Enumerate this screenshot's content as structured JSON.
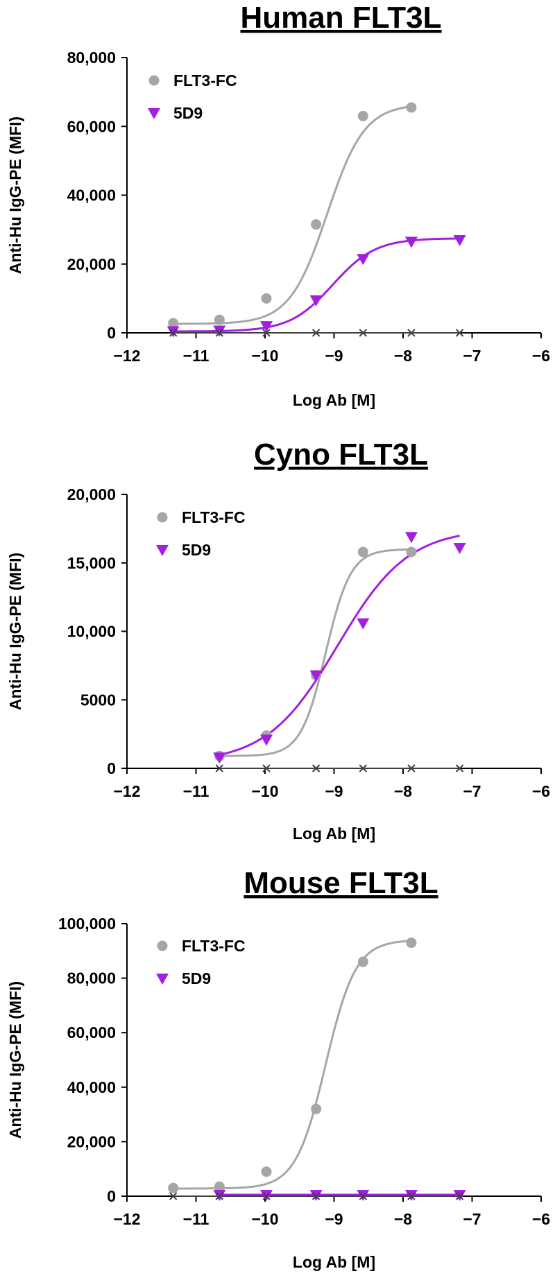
{
  "colors": {
    "flt3fc": "#a6a6a6",
    "d5d9": "#a21ee0",
    "control": "#404040",
    "axis": "#000000"
  },
  "chart_data": [
    {
      "type": "scatter",
      "title": "Human FLT3L",
      "xlabel": "Log Ab [M]",
      "ylabel": "Anti-Hu IgG-PE (MFI)",
      "xlim": [
        -12,
        -6
      ],
      "ylim": [
        0,
        80000
      ],
      "xticks": [
        -12,
        -11,
        -10,
        -9,
        -8,
        -7,
        -6
      ],
      "xtick_labels": [
        "−12",
        "−11",
        "−10",
        "−9",
        "−8",
        "−7",
        "−6"
      ],
      "yticks": [
        0,
        20000,
        40000,
        60000,
        80000
      ],
      "ytick_labels": [
        "0",
        "20,000",
        "40,000",
        "60,000",
        "80,000"
      ],
      "legend": [
        "FLT3-FC",
        "5D9"
      ],
      "legend_position": "top-left",
      "series": [
        {
          "name": "FLT3-FC",
          "marker": "circle",
          "x": [
            -11.33,
            -10.66,
            -9.98,
            -9.26,
            -8.58,
            -7.88
          ],
          "y": [
            2800,
            3800,
            10000,
            31500,
            63000,
            65500
          ],
          "fit": {
            "bottom": 2600,
            "top": 66500,
            "logec50": -9.1,
            "hill": 1.6,
            "xmin": -11.33,
            "xmax": -7.88
          }
        },
        {
          "name": "5D9",
          "marker": "triangle-down",
          "x": [
            -11.33,
            -10.66,
            -9.98,
            -9.26,
            -8.58,
            -7.88,
            -7.18
          ],
          "y": [
            500,
            700,
            2000,
            9500,
            21500,
            26500,
            27000
          ],
          "fit": {
            "bottom": 400,
            "top": 27500,
            "logec50": -9.02,
            "hill": 1.4,
            "xmin": -11.33,
            "xmax": -7.18
          }
        },
        {
          "name": "control",
          "marker": "x",
          "x": [
            -11.33,
            -10.66,
            -9.98,
            -9.26,
            -8.58,
            -7.88,
            -7.18
          ],
          "y": [
            0,
            0,
            0,
            0,
            0,
            0,
            0
          ]
        }
      ]
    },
    {
      "type": "scatter",
      "title": "Cyno FLT3L",
      "xlabel": "Log Ab [M]",
      "ylabel": "Anti-Hu IgG-PE (MFI)",
      "xlim": [
        -12,
        -6
      ],
      "ylim": [
        0,
        20000
      ],
      "xticks": [
        -12,
        -11,
        -10,
        -9,
        -8,
        -7,
        -6
      ],
      "xtick_labels": [
        "−12",
        "−11",
        "−10",
        "−9",
        "−8",
        "−7",
        "−6"
      ],
      "yticks": [
        0,
        5000,
        10000,
        15000,
        20000
      ],
      "ytick_labels": [
        "0",
        "5000",
        "10,000",
        "15,000",
        "20,000"
      ],
      "legend": [
        "FLT3-FC",
        "5D9"
      ],
      "legend_position": "top-left",
      "series": [
        {
          "name": "FLT3-FC",
          "marker": "circle",
          "x": [
            -10.66,
            -9.98,
            -9.26,
            -8.58,
            -7.88
          ],
          "y": [
            900,
            2400,
            6800,
            15800,
            15800
          ],
          "fit": {
            "bottom": 900,
            "top": 16000,
            "logec50": -9.12,
            "hill": 2.4,
            "xmin": -10.66,
            "xmax": -7.88
          }
        },
        {
          "name": "5D9",
          "marker": "triangle-down",
          "x": [
            -10.66,
            -9.98,
            -9.26,
            -8.58,
            -7.88,
            -7.18
          ],
          "y": [
            800,
            2100,
            6800,
            10600,
            16900,
            16100
          ],
          "fit": {
            "bottom": 400,
            "top": 17500,
            "logec50": -8.95,
            "hill": 0.85,
            "xmin": -10.66,
            "xmax": -7.18
          }
        },
        {
          "name": "control",
          "marker": "x",
          "x": [
            -10.66,
            -9.98,
            -9.26,
            -8.58,
            -7.88,
            -7.18
          ],
          "y": [
            0,
            0,
            0,
            0,
            0,
            0
          ]
        }
      ]
    },
    {
      "type": "scatter",
      "title": "Mouse FLT3L",
      "xlabel": "Log Ab [M]",
      "ylabel": "Anti-Hu IgG-PE (MFI)",
      "xlim": [
        -12,
        -6
      ],
      "ylim": [
        0,
        100000
      ],
      "xticks": [
        -12,
        -11,
        -10,
        -9,
        -8,
        -7,
        -6
      ],
      "xtick_labels": [
        "−12",
        "−11",
        "−10",
        "−9",
        "−8",
        "−7",
        "−6"
      ],
      "yticks": [
        0,
        20000,
        40000,
        60000,
        80000,
        100000
      ],
      "ytick_labels": [
        "0",
        "20,000",
        "40,000",
        "60,000",
        "80,000",
        "100,000"
      ],
      "legend": [
        "FLT3-FC",
        "5D9"
      ],
      "legend_position": "top-left",
      "series": [
        {
          "name": "FLT3-FC",
          "marker": "circle",
          "x": [
            -11.33,
            -10.66,
            -9.98,
            -9.26,
            -8.58,
            -7.88
          ],
          "y": [
            3000,
            3500,
            9000,
            32000,
            86000,
            93000
          ],
          "fit": {
            "bottom": 2800,
            "top": 94000,
            "logec50": -9.12,
            "hill": 2.0,
            "xmin": -11.33,
            "xmax": -7.88
          }
        },
        {
          "name": "5D9",
          "marker": "triangle-down",
          "x": [
            -10.66,
            -9.98,
            -9.26,
            -8.58,
            -7.88,
            -7.18
          ],
          "y": [
            500,
            500,
            500,
            500,
            500,
            500
          ],
          "fit": {
            "bottom": 500,
            "top": 500,
            "logec50": -9.0,
            "hill": 1.0,
            "xmin": -10.66,
            "xmax": -7.18
          }
        },
        {
          "name": "control",
          "marker": "x",
          "x": [
            -11.33,
            -10.66,
            -9.98,
            -9.26,
            -8.58,
            -7.88,
            -7.18
          ],
          "y": [
            0,
            0,
            0,
            0,
            0,
            0,
            0
          ]
        }
      ]
    }
  ]
}
